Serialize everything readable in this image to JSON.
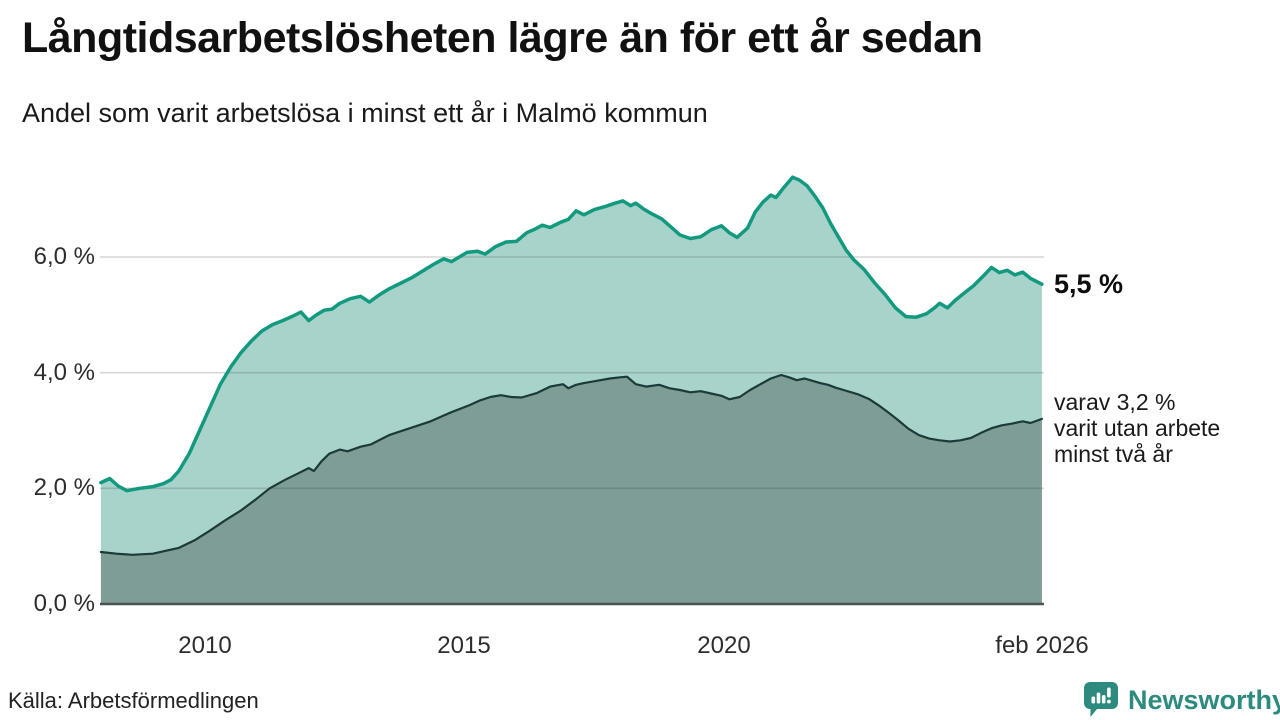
{
  "header": {
    "title": "Långtidsarbetslösheten lägre än för ett år sedan",
    "subtitle": "Andel som varit arbetslösa i minst ett år i Malmö kommun"
  },
  "annotations": {
    "end_value_label": "5,5 %",
    "secondary_label": "varav 3,2 %\nvarit utan arbete\nminst två år"
  },
  "footer": {
    "source": "Källa: Arbetsförmedlingen",
    "brand": "Newsworthy",
    "brand_icon": "speech-bubble-bar-chart"
  },
  "colors": {
    "series1_line": "#13997e",
    "series1_fill": "#a7d3cb",
    "series2_line": "#1c3a37",
    "series2_fill": "#7d9d96",
    "baseline": "#4a5553",
    "gridline": "rgba(70,70,70,0.22)",
    "brand_teal": "#2c8a7e"
  },
  "chart_data": {
    "type": "area",
    "title": "Långtidsarbetslösheten lägre än för ett år sedan",
    "subtitle": "Andel som varit arbetslösa i minst ett år i Malmö kommun",
    "unit": "%",
    "grid": true,
    "legend": "none (direct labels at line ends)",
    "x_axis": {
      "range": [
        2008.0,
        2026.17
      ],
      "ticks": [
        {
          "label": "2010",
          "year": 2010
        },
        {
          "label": "2015",
          "year": 2015
        },
        {
          "label": "2020",
          "year": 2020
        },
        {
          "label": "feb 2026",
          "year": 2026.12
        }
      ]
    },
    "y_axis": {
      "range": [
        0,
        7.6
      ],
      "ticks": [
        {
          "label": "0,0 %",
          "value": 0
        },
        {
          "label": "2,0 %",
          "value": 2
        },
        {
          "label": "4,0 %",
          "value": 4
        },
        {
          "label": "6,0 %",
          "value": 6
        }
      ]
    },
    "series": [
      {
        "name": "Arbetslösa minst ett år",
        "end_value": 5.5,
        "end_label": "5,5 %",
        "points": [
          [
            2008.0,
            2.1
          ],
          [
            2008.17,
            2.17
          ],
          [
            2008.33,
            2.04
          ],
          [
            2008.5,
            1.96
          ],
          [
            2008.75,
            2.0
          ],
          [
            2009.0,
            2.03
          ],
          [
            2009.2,
            2.08
          ],
          [
            2009.35,
            2.15
          ],
          [
            2009.5,
            2.3
          ],
          [
            2009.7,
            2.6
          ],
          [
            2009.9,
            3.0
          ],
          [
            2010.1,
            3.4
          ],
          [
            2010.3,
            3.8
          ],
          [
            2010.5,
            4.1
          ],
          [
            2010.7,
            4.35
          ],
          [
            2010.9,
            4.55
          ],
          [
            2011.1,
            4.72
          ],
          [
            2011.3,
            4.83
          ],
          [
            2011.5,
            4.9
          ],
          [
            2011.7,
            4.98
          ],
          [
            2011.85,
            5.05
          ],
          [
            2012.0,
            4.9
          ],
          [
            2012.15,
            5.0
          ],
          [
            2012.3,
            5.08
          ],
          [
            2012.45,
            5.1
          ],
          [
            2012.6,
            5.2
          ],
          [
            2012.8,
            5.28
          ],
          [
            2013.0,
            5.32
          ],
          [
            2013.17,
            5.22
          ],
          [
            2013.35,
            5.34
          ],
          [
            2013.55,
            5.45
          ],
          [
            2013.8,
            5.56
          ],
          [
            2014.0,
            5.65
          ],
          [
            2014.2,
            5.76
          ],
          [
            2014.4,
            5.87
          ],
          [
            2014.6,
            5.97
          ],
          [
            2014.75,
            5.92
          ],
          [
            2014.9,
            6.0
          ],
          [
            2015.05,
            6.08
          ],
          [
            2015.25,
            6.1
          ],
          [
            2015.4,
            6.05
          ],
          [
            2015.6,
            6.18
          ],
          [
            2015.8,
            6.26
          ],
          [
            2016.0,
            6.27
          ],
          [
            2016.2,
            6.42
          ],
          [
            2016.35,
            6.48
          ],
          [
            2016.5,
            6.55
          ],
          [
            2016.65,
            6.51
          ],
          [
            2016.85,
            6.6
          ],
          [
            2017.0,
            6.65
          ],
          [
            2017.15,
            6.8
          ],
          [
            2017.3,
            6.73
          ],
          [
            2017.5,
            6.82
          ],
          [
            2017.7,
            6.87
          ],
          [
            2017.9,
            6.93
          ],
          [
            2018.05,
            6.97
          ],
          [
            2018.2,
            6.89
          ],
          [
            2018.3,
            6.93
          ],
          [
            2018.45,
            6.83
          ],
          [
            2018.6,
            6.75
          ],
          [
            2018.8,
            6.66
          ],
          [
            2019.0,
            6.5
          ],
          [
            2019.15,
            6.38
          ],
          [
            2019.35,
            6.32
          ],
          [
            2019.55,
            6.35
          ],
          [
            2019.75,
            6.47
          ],
          [
            2019.95,
            6.54
          ],
          [
            2020.1,
            6.42
          ],
          [
            2020.25,
            6.34
          ],
          [
            2020.45,
            6.5
          ],
          [
            2020.6,
            6.78
          ],
          [
            2020.75,
            6.95
          ],
          [
            2020.9,
            7.07
          ],
          [
            2021.0,
            7.03
          ],
          [
            2021.15,
            7.2
          ],
          [
            2021.32,
            7.38
          ],
          [
            2021.45,
            7.33
          ],
          [
            2021.6,
            7.23
          ],
          [
            2021.75,
            7.05
          ],
          [
            2021.9,
            6.85
          ],
          [
            2022.05,
            6.58
          ],
          [
            2022.2,
            6.35
          ],
          [
            2022.35,
            6.12
          ],
          [
            2022.5,
            5.95
          ],
          [
            2022.7,
            5.78
          ],
          [
            2022.9,
            5.55
          ],
          [
            2023.1,
            5.35
          ],
          [
            2023.3,
            5.12
          ],
          [
            2023.5,
            4.97
          ],
          [
            2023.7,
            4.96
          ],
          [
            2023.9,
            5.02
          ],
          [
            2024.05,
            5.12
          ],
          [
            2024.15,
            5.2
          ],
          [
            2024.3,
            5.12
          ],
          [
            2024.45,
            5.25
          ],
          [
            2024.6,
            5.36
          ],
          [
            2024.8,
            5.5
          ],
          [
            2025.0,
            5.68
          ],
          [
            2025.15,
            5.82
          ],
          [
            2025.3,
            5.73
          ],
          [
            2025.45,
            5.77
          ],
          [
            2025.6,
            5.69
          ],
          [
            2025.75,
            5.74
          ],
          [
            2025.9,
            5.63
          ],
          [
            2026.12,
            5.53
          ]
        ]
      },
      {
        "name": "Varav arbetslösa minst två år",
        "end_value": 3.2,
        "end_label": "varav 3,2 % varit utan arbete minst två år",
        "points": [
          [
            2008.0,
            0.9
          ],
          [
            2008.3,
            0.87
          ],
          [
            2008.6,
            0.85
          ],
          [
            2009.0,
            0.87
          ],
          [
            2009.3,
            0.93
          ],
          [
            2009.5,
            0.97
          ],
          [
            2009.8,
            1.1
          ],
          [
            2010.1,
            1.27
          ],
          [
            2010.4,
            1.45
          ],
          [
            2010.7,
            1.62
          ],
          [
            2011.0,
            1.82
          ],
          [
            2011.25,
            2.0
          ],
          [
            2011.55,
            2.15
          ],
          [
            2011.8,
            2.26
          ],
          [
            2012.0,
            2.35
          ],
          [
            2012.1,
            2.3
          ],
          [
            2012.25,
            2.47
          ],
          [
            2012.4,
            2.6
          ],
          [
            2012.6,
            2.67
          ],
          [
            2012.75,
            2.64
          ],
          [
            2013.0,
            2.72
          ],
          [
            2013.2,
            2.76
          ],
          [
            2013.55,
            2.92
          ],
          [
            2013.95,
            3.04
          ],
          [
            2014.35,
            3.16
          ],
          [
            2014.7,
            3.3
          ],
          [
            2015.1,
            3.44
          ],
          [
            2015.3,
            3.52
          ],
          [
            2015.5,
            3.58
          ],
          [
            2015.7,
            3.61
          ],
          [
            2015.9,
            3.58
          ],
          [
            2016.1,
            3.57
          ],
          [
            2016.4,
            3.65
          ],
          [
            2016.65,
            3.76
          ],
          [
            2016.9,
            3.8
          ],
          [
            2017.0,
            3.73
          ],
          [
            2017.15,
            3.79
          ],
          [
            2017.3,
            3.82
          ],
          [
            2017.55,
            3.86
          ],
          [
            2017.8,
            3.9
          ],
          [
            2018.0,
            3.92
          ],
          [
            2018.13,
            3.93
          ],
          [
            2018.3,
            3.8
          ],
          [
            2018.5,
            3.76
          ],
          [
            2018.75,
            3.79
          ],
          [
            2018.95,
            3.73
          ],
          [
            2019.15,
            3.7
          ],
          [
            2019.35,
            3.66
          ],
          [
            2019.55,
            3.68
          ],
          [
            2019.75,
            3.64
          ],
          [
            2019.95,
            3.6
          ],
          [
            2020.1,
            3.54
          ],
          [
            2020.3,
            3.58
          ],
          [
            2020.5,
            3.7
          ],
          [
            2020.7,
            3.8
          ],
          [
            2020.9,
            3.9
          ],
          [
            2021.1,
            3.96
          ],
          [
            2021.25,
            3.92
          ],
          [
            2021.4,
            3.87
          ],
          [
            2021.55,
            3.9
          ],
          [
            2021.7,
            3.86
          ],
          [
            2021.85,
            3.82
          ],
          [
            2022.0,
            3.79
          ],
          [
            2022.15,
            3.74
          ],
          [
            2022.3,
            3.7
          ],
          [
            2022.45,
            3.66
          ],
          [
            2022.6,
            3.62
          ],
          [
            2022.8,
            3.54
          ],
          [
            2023.0,
            3.42
          ],
          [
            2023.15,
            3.32
          ],
          [
            2023.35,
            3.18
          ],
          [
            2023.55,
            3.03
          ],
          [
            2023.75,
            2.92
          ],
          [
            2023.95,
            2.86
          ],
          [
            2024.15,
            2.83
          ],
          [
            2024.35,
            2.81
          ],
          [
            2024.55,
            2.83
          ],
          [
            2024.75,
            2.87
          ],
          [
            2024.95,
            2.96
          ],
          [
            2025.15,
            3.04
          ],
          [
            2025.35,
            3.09
          ],
          [
            2025.55,
            3.12
          ],
          [
            2025.75,
            3.16
          ],
          [
            2025.9,
            3.13
          ],
          [
            2026.12,
            3.2
          ]
        ]
      }
    ]
  }
}
